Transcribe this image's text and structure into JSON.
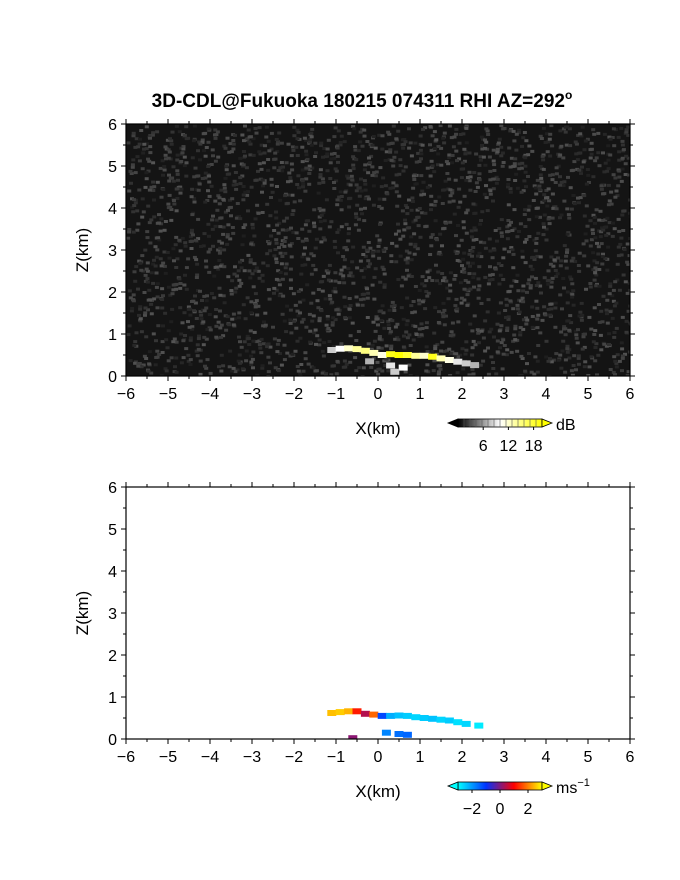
{
  "chart_data": {
    "title": "3D-CDL@Fukuoka 180215 074311 RHI AZ=292",
    "title_sup": "o",
    "panels": [
      {
        "id": "reflectivity",
        "type": "heatmap",
        "xlabel": "X(km)",
        "ylabel": "Z(km)",
        "xlim": [
          -6,
          6
        ],
        "ylim": [
          0,
          6
        ],
        "xticks": [
          -6,
          -5,
          -4,
          -3,
          -2,
          -1,
          0,
          1,
          2,
          3,
          4,
          5,
          6
        ],
        "yticks": [
          0,
          1,
          2,
          3,
          4,
          5,
          6
        ],
        "background": "noise (dark grey speckle over whole domain)",
        "colorbar": {
          "unit": "dB",
          "ticks": [
            6,
            12,
            18
          ],
          "range": [
            0,
            20
          ],
          "colors": [
            "#000000",
            "#ffffff",
            "#ffff00"
          ]
        },
        "echo_points": [
          {
            "x": -1.1,
            "z": 0.62,
            "v": 8
          },
          {
            "x": -0.9,
            "z": 0.65,
            "v": 10
          },
          {
            "x": -0.7,
            "z": 0.66,
            "v": 12
          },
          {
            "x": -0.5,
            "z": 0.64,
            "v": 14
          },
          {
            "x": -0.3,
            "z": 0.6,
            "v": 15
          },
          {
            "x": -0.1,
            "z": 0.55,
            "v": 13
          },
          {
            "x": 0.1,
            "z": 0.5,
            "v": 11
          },
          {
            "x": 0.3,
            "z": 0.52,
            "v": 19
          },
          {
            "x": 0.5,
            "z": 0.5,
            "v": 20
          },
          {
            "x": 0.7,
            "z": 0.5,
            "v": 18
          },
          {
            "x": 0.9,
            "z": 0.48,
            "v": 14
          },
          {
            "x": 1.1,
            "z": 0.48,
            "v": 12
          },
          {
            "x": 1.3,
            "z": 0.46,
            "v": 19
          },
          {
            "x": 1.5,
            "z": 0.42,
            "v": 13
          },
          {
            "x": 1.7,
            "z": 0.38,
            "v": 11
          },
          {
            "x": 1.9,
            "z": 0.34,
            "v": 9
          },
          {
            "x": 2.1,
            "z": 0.3,
            "v": 8
          },
          {
            "x": 2.3,
            "z": 0.26,
            "v": 7
          },
          {
            "x": 0.3,
            "z": 0.25,
            "v": 9
          },
          {
            "x": 0.6,
            "z": 0.2,
            "v": 10
          },
          {
            "x": 0.4,
            "z": 0.1,
            "v": 8
          },
          {
            "x": -0.2,
            "z": 0.35,
            "v": 7
          }
        ]
      },
      {
        "id": "doppler",
        "type": "heatmap",
        "xlabel": "X(km)",
        "ylabel": "Z(km)",
        "xlim": [
          -6,
          6
        ],
        "ylim": [
          0,
          6
        ],
        "xticks": [
          -6,
          -5,
          -4,
          -3,
          -2,
          -1,
          0,
          1,
          2,
          3,
          4,
          5,
          6
        ],
        "yticks": [
          0,
          1,
          2,
          3,
          4,
          5,
          6
        ],
        "colorbar": {
          "unit": "ms",
          "unit_sup": "−1",
          "ticks": [
            "−2",
            "0",
            "2"
          ],
          "tick_values": [
            -2,
            0,
            2
          ],
          "range": [
            -3,
            3
          ],
          "colors": [
            "#00ffff",
            "#0033ff",
            "#ff0000",
            "#ffff00"
          ]
        },
        "echo_points": [
          {
            "x": -1.1,
            "z": 0.62,
            "v": 2.5
          },
          {
            "x": -0.9,
            "z": 0.64,
            "v": 2.6
          },
          {
            "x": -0.7,
            "z": 0.66,
            "v": 2.4
          },
          {
            "x": -0.5,
            "z": 0.66,
            "v": 1.2
          },
          {
            "x": -0.3,
            "z": 0.6,
            "v": 0.4
          },
          {
            "x": -0.1,
            "z": 0.58,
            "v": 1.8
          },
          {
            "x": 0.1,
            "z": 0.55,
            "v": -1.2
          },
          {
            "x": 0.3,
            "z": 0.55,
            "v": -2.2
          },
          {
            "x": 0.5,
            "z": 0.56,
            "v": -2.4
          },
          {
            "x": 0.7,
            "z": 0.55,
            "v": -2.5
          },
          {
            "x": 0.9,
            "z": 0.52,
            "v": -2.6
          },
          {
            "x": 1.1,
            "z": 0.5,
            "v": -2.5
          },
          {
            "x": 1.3,
            "z": 0.48,
            "v": -2.4
          },
          {
            "x": 1.5,
            "z": 0.46,
            "v": -2.6
          },
          {
            "x": 1.7,
            "z": 0.44,
            "v": -2.5
          },
          {
            "x": 1.9,
            "z": 0.4,
            "v": -2.7
          },
          {
            "x": 2.1,
            "z": 0.36,
            "v": -2.6
          },
          {
            "x": 2.4,
            "z": 0.32,
            "v": -2.8
          },
          {
            "x": 0.2,
            "z": 0.15,
            "v": -1.8
          },
          {
            "x": 0.5,
            "z": 0.12,
            "v": -1.6
          },
          {
            "x": 0.7,
            "z": 0.1,
            "v": -1.5
          },
          {
            "x": -0.6,
            "z": 0.02,
            "v": 0.1
          }
        ]
      }
    ]
  }
}
